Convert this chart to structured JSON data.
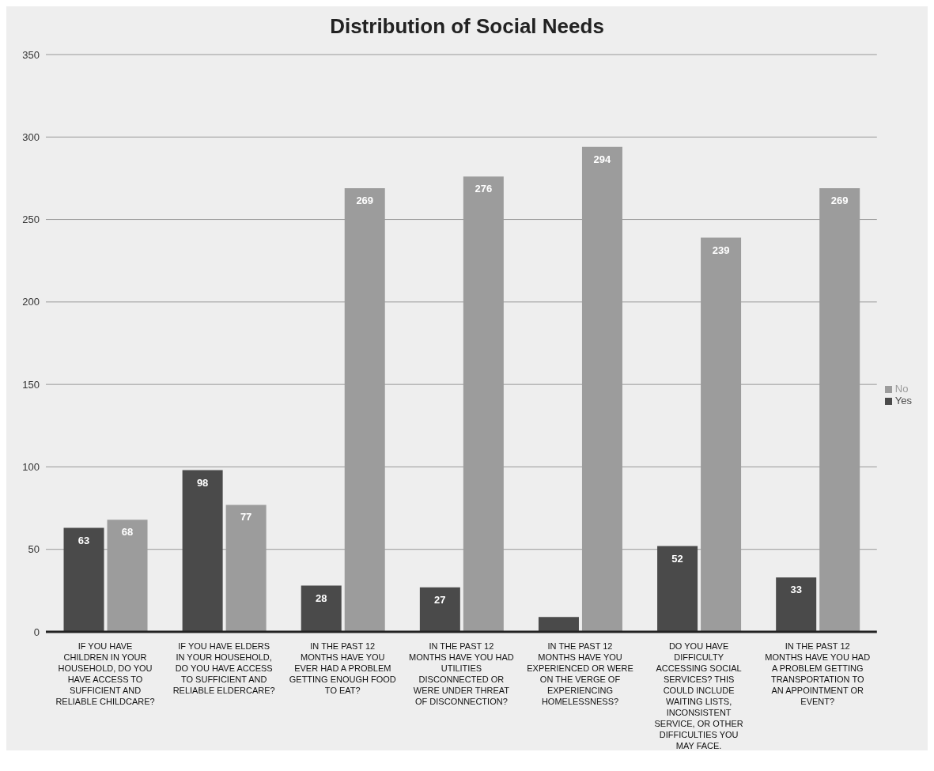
{
  "chart_data": {
    "type": "bar",
    "title": "Distribution of Social Needs",
    "categories": [
      "IF YOU HAVE CHILDREN IN YOUR HOUSEHOLD, DO YOU HAVE ACCESS TO SUFFICIENT AND RELIABLE CHILDCARE?",
      "IF YOU HAVE ELDERS IN YOUR HOUSEHOLD, DO YOU HAVE ACCESS TO SUFFICIENT AND RELIABLE ELDERCARE?",
      "IN THE PAST 12 MONTHS HAVE YOU EVER HAD A PROBLEM GETTING ENOUGH FOOD TO EAT?",
      "IN THE PAST 12 MONTHS HAVE YOU HAD UTILITIES DISCONNECTED OR WERE UNDER THREAT OF DISCONNECTION?",
      "IN THE PAST 12 MONTHS HAVE YOU EXPERIENCED OR WERE ON THE VERGE OF EXPERIENCING HOMELESSNESS?",
      "DO YOU HAVE DIFFICULTY ACCESSING SOCIAL SERVICES? THIS COULD INCLUDE WAITING LISTS, INCONSISTENT SERVICE, OR OTHER DIFFICULTIES YOU MAY FACE.",
      "IN THE PAST 12 MONTHS HAVE YOU HAD A PROBLEM GETTING TRANSPORTATION TO AN APPOINTMENT OR EVENT?"
    ],
    "series": [
      {
        "name": "Yes",
        "color": "#4a4a4a",
        "values": [
          63,
          98,
          28,
          27,
          9,
          52,
          33
        ],
        "value_labels": [
          "63",
          "98",
          "28",
          "27",
          null,
          "52",
          "33"
        ]
      },
      {
        "name": "No",
        "color": "#9c9c9c",
        "values": [
          68,
          77,
          269,
          276,
          294,
          239,
          269
        ],
        "value_labels": [
          "68",
          "77",
          "269",
          "276",
          "294",
          "239",
          "269"
        ]
      }
    ],
    "ylim": [
      0,
      350
    ],
    "yticks": [
      0,
      50,
      100,
      150,
      200,
      250,
      300,
      350
    ],
    "grid": "y",
    "legend": "right"
  }
}
